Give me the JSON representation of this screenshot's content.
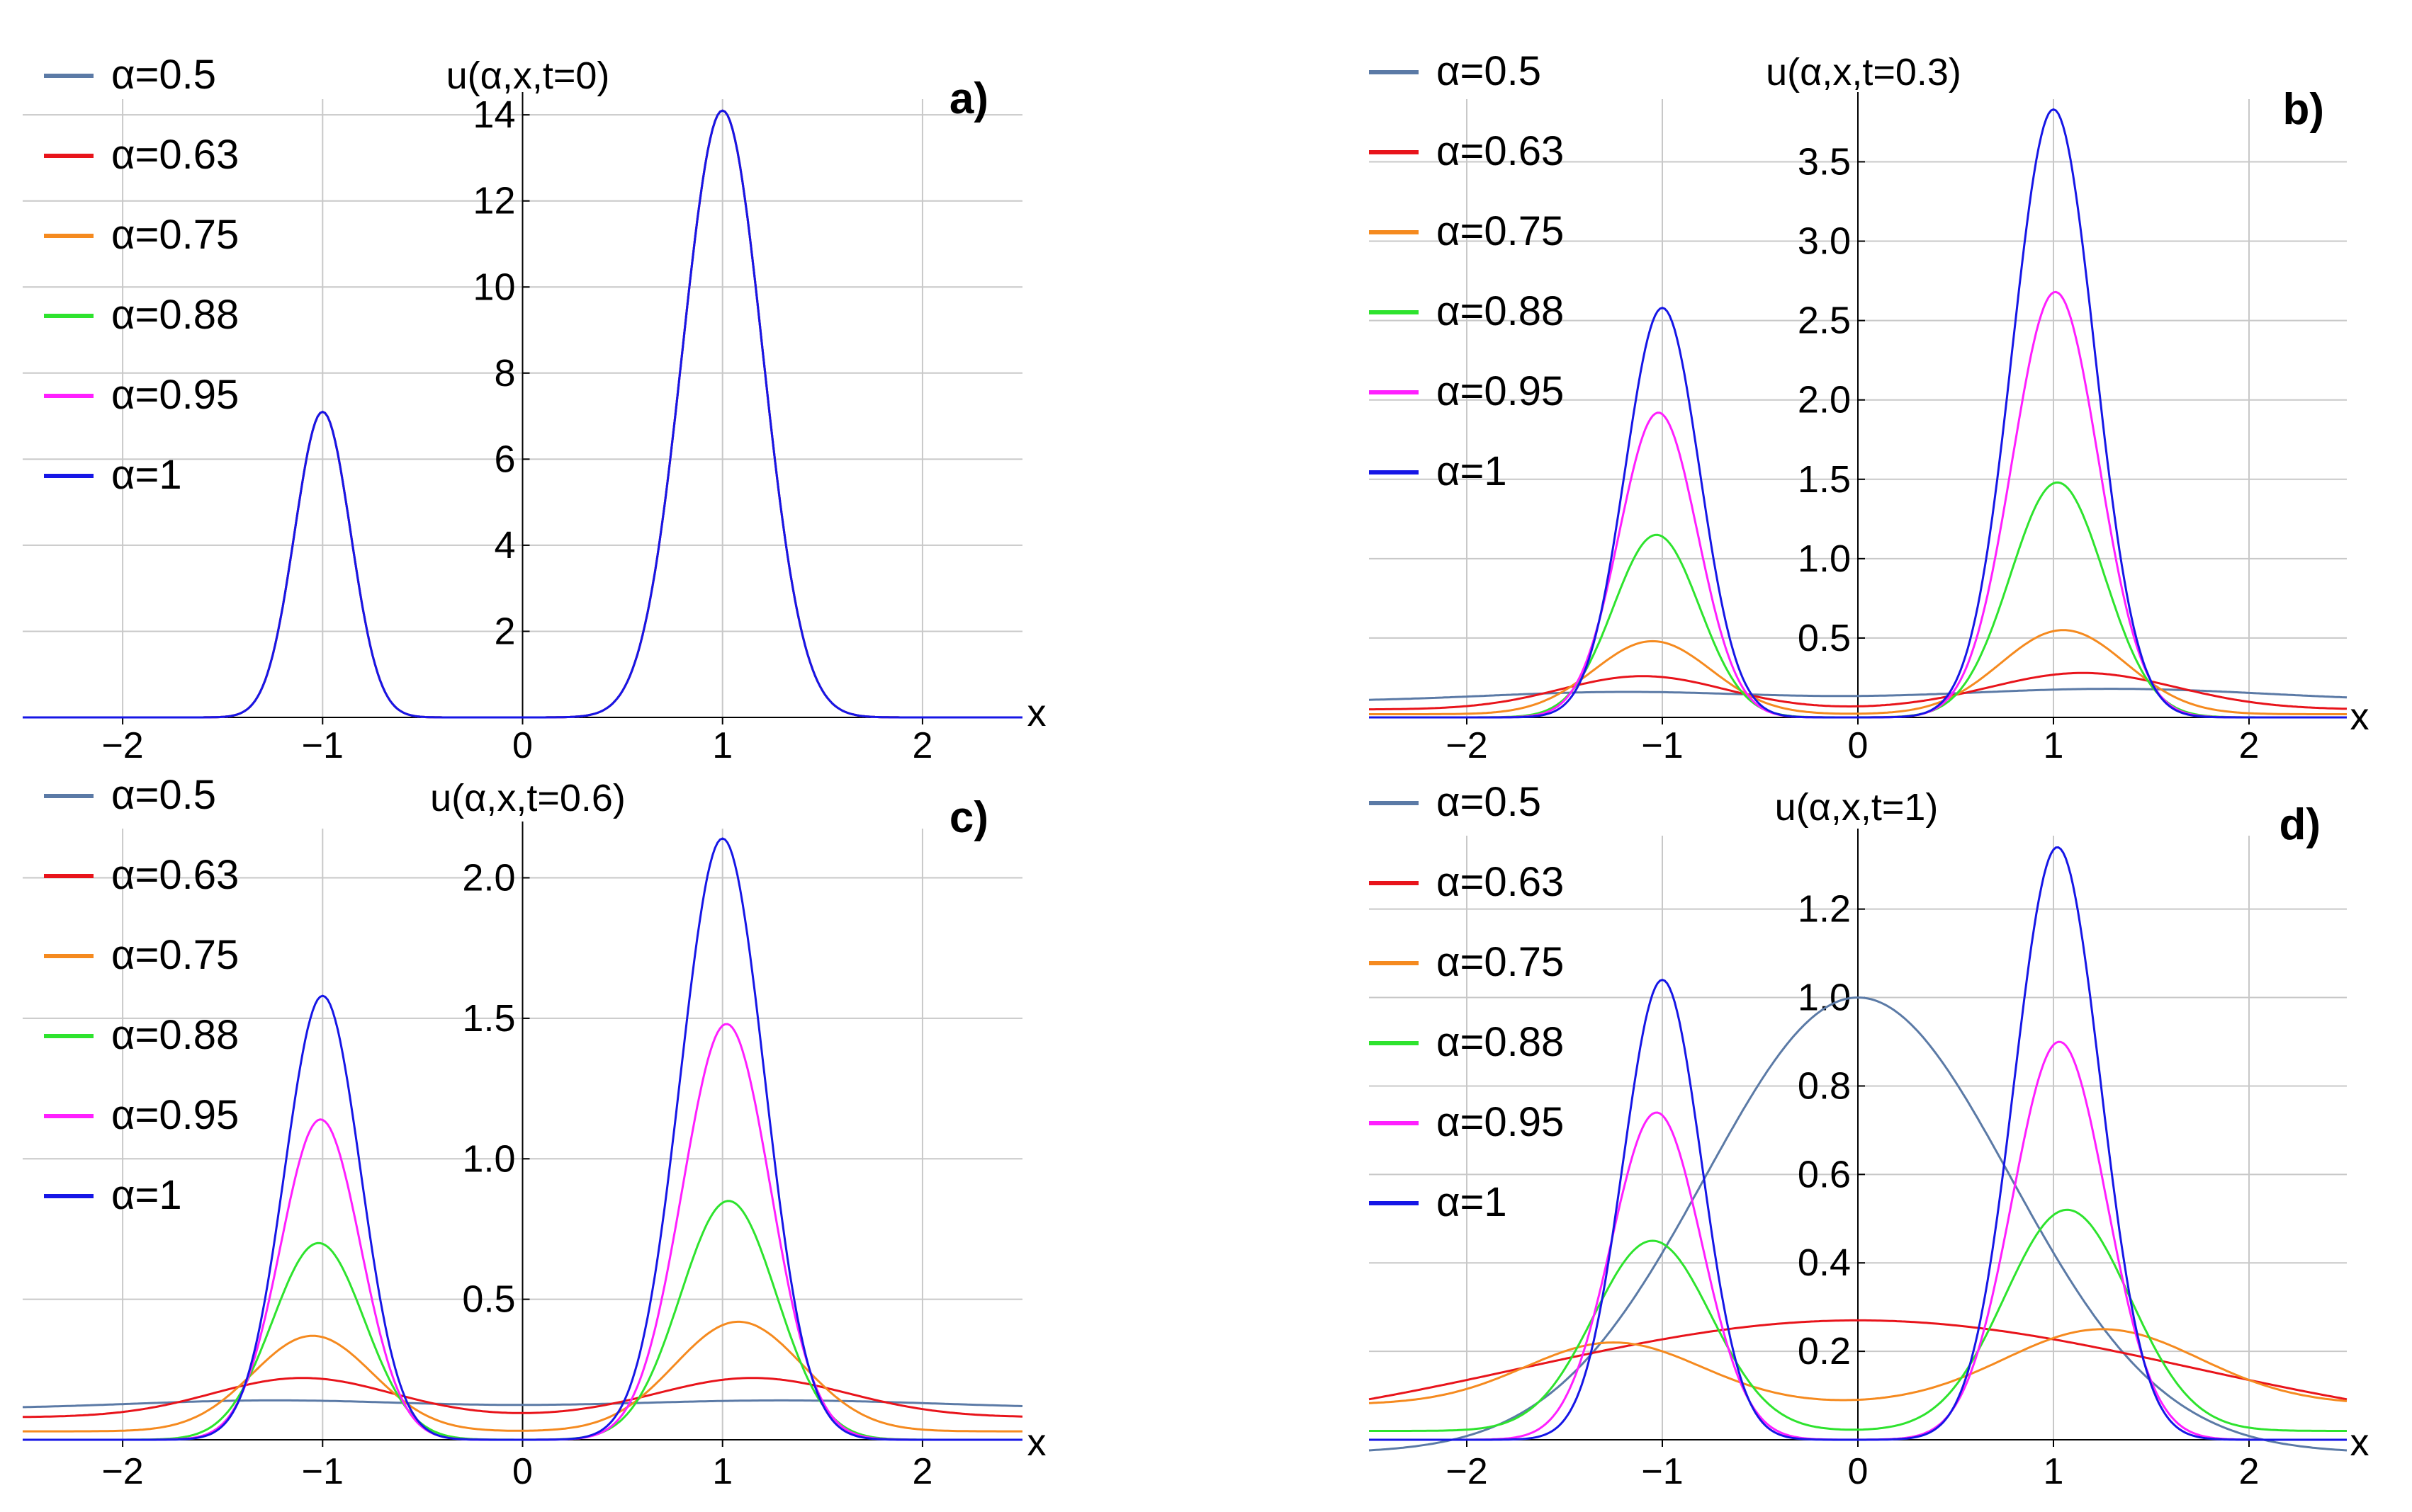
{
  "series_styles": [
    {
      "name": "α=0.5",
      "color": "#5b7aa6"
    },
    {
      "name": "α=0.63",
      "color": "#e8141b"
    },
    {
      "name": "α=0.75",
      "color": "#f58a1f"
    },
    {
      "name": "α=0.88",
      "color": "#2ee32e"
    },
    {
      "name": "α=0.95",
      "color": "#ff1fff"
    },
    {
      "name": "α=1",
      "color": "#1616e6"
    }
  ],
  "chart_data": [
    {
      "type": "line",
      "panel_label": "a)",
      "title": "u(α,x,t=0)",
      "xlabel": "x",
      "xlim": [
        -2.5,
        2.5
      ],
      "ylim": [
        0,
        14.2
      ],
      "grid": true,
      "legend_position": "top-left",
      "x_ticks": [
        -2,
        -1,
        0,
        1,
        2
      ],
      "x_tick_labels": [
        "−2",
        "−1",
        "0",
        "1",
        "2"
      ],
      "y_ticks": [
        2,
        4,
        6,
        8,
        10,
        12,
        14
      ],
      "y_tick_labels": [
        "2",
        "4",
        "6",
        "8",
        "10",
        "12",
        "14"
      ],
      "series": [
        {
          "name": "α=0.5",
          "peaks": [
            {
              "x": -1,
              "y": 7.1,
              "w": 0.14
            },
            {
              "x": 1,
              "y": 14.1,
              "w": 0.2
            }
          ],
          "base": 0
        },
        {
          "name": "α=0.63",
          "peaks": [
            {
              "x": -1,
              "y": 7.1,
              "w": 0.14
            },
            {
              "x": 1,
              "y": 14.1,
              "w": 0.2
            }
          ],
          "base": 0
        },
        {
          "name": "α=0.75",
          "peaks": [
            {
              "x": -1,
              "y": 7.1,
              "w": 0.14
            },
            {
              "x": 1,
              "y": 14.1,
              "w": 0.2
            }
          ],
          "base": 0
        },
        {
          "name": "α=0.88",
          "peaks": [
            {
              "x": -1,
              "y": 7.1,
              "w": 0.14
            },
            {
              "x": 1,
              "y": 14.1,
              "w": 0.2
            }
          ],
          "base": 0
        },
        {
          "name": "α=0.95",
          "peaks": [
            {
              "x": -1,
              "y": 7.1,
              "w": 0.14
            },
            {
              "x": 1,
              "y": 14.1,
              "w": 0.2
            }
          ],
          "base": 0
        },
        {
          "name": "α=1",
          "peaks": [
            {
              "x": -1,
              "y": 7.1,
              "w": 0.14
            },
            {
              "x": 1,
              "y": 14.1,
              "w": 0.2
            }
          ],
          "base": 0
        }
      ]
    },
    {
      "type": "line",
      "panel_label": "b)",
      "title": "u(α,x,t=0.3)",
      "xlabel": "x",
      "xlim": [
        -2.5,
        2.5
      ],
      "ylim": [
        0,
        3.85
      ],
      "grid": true,
      "legend_position": "top-left",
      "x_ticks": [
        -2,
        -1,
        0,
        1,
        2
      ],
      "x_tick_labels": [
        "−2",
        "−1",
        "0",
        "1",
        "2"
      ],
      "y_ticks": [
        0.5,
        1.0,
        1.5,
        2.0,
        2.5,
        3.0,
        3.5
      ],
      "y_tick_labels": [
        "0.5",
        "1.0",
        "1.5",
        "2.0",
        "2.5",
        "3.0",
        "3.5"
      ],
      "series": [
        {
          "name": "α=0.5",
          "peaks": [
            {
              "x": -1.2,
              "y": 0.16,
              "w": 0.7
            },
            {
              "x": 1.3,
              "y": 0.18,
              "w": 0.8
            }
          ],
          "base": 0.1
        },
        {
          "name": "α=0.63",
          "peaks": [
            {
              "x": -1.1,
              "y": 0.26,
              "w": 0.42
            },
            {
              "x": 1.15,
              "y": 0.28,
              "w": 0.48
            }
          ],
          "base": 0.05
        },
        {
          "name": "α=0.75",
          "peaks": [
            {
              "x": -1.05,
              "y": 0.48,
              "w": 0.3
            },
            {
              "x": 1.05,
              "y": 0.55,
              "w": 0.32
            }
          ],
          "base": 0.02
        },
        {
          "name": "α=0.88",
          "peaks": [
            {
              "x": -1.03,
              "y": 1.15,
              "w": 0.22
            },
            {
              "x": 1.02,
              "y": 1.48,
              "w": 0.24
            }
          ],
          "base": 0
        },
        {
          "name": "α=0.95",
          "peaks": [
            {
              "x": -1.02,
              "y": 1.92,
              "w": 0.2
            },
            {
              "x": 1.01,
              "y": 2.68,
              "w": 0.22
            }
          ],
          "base": 0
        },
        {
          "name": "α=1",
          "peaks": [
            {
              "x": -1.0,
              "y": 2.58,
              "w": 0.19
            },
            {
              "x": 1.0,
              "y": 3.83,
              "w": 0.21
            }
          ],
          "base": 0
        }
      ]
    },
    {
      "type": "line",
      "panel_label": "c)",
      "title": "u(α,x,t=0.6)",
      "xlabel": "x",
      "xlim": [
        -2.5,
        2.5
      ],
      "ylim": [
        0,
        2.15
      ],
      "grid": true,
      "legend_position": "top-left",
      "x_ticks": [
        -2,
        -1,
        0,
        1,
        2
      ],
      "x_tick_labels": [
        "−2",
        "−1",
        "0",
        "1",
        "2"
      ],
      "y_ticks": [
        0.5,
        1.0,
        1.5,
        2.0
      ],
      "y_tick_labels": [
        "0.5",
        "1.0",
        "1.5",
        "2.0"
      ],
      "series": [
        {
          "name": "α=0.5",
          "peaks": [
            {
              "x": -1.25,
              "y": 0.14,
              "w": 0.7
            },
            {
              "x": 1.3,
              "y": 0.14,
              "w": 0.8
            }
          ],
          "base": 0.11
        },
        {
          "name": "α=0.63",
          "peaks": [
            {
              "x": -1.1,
              "y": 0.22,
              "w": 0.45
            },
            {
              "x": 1.15,
              "y": 0.22,
              "w": 0.48
            }
          ],
          "base": 0.08
        },
        {
          "name": "α=0.75",
          "peaks": [
            {
              "x": -1.05,
              "y": 0.37,
              "w": 0.3
            },
            {
              "x": 1.08,
              "y": 0.42,
              "w": 0.32
            }
          ],
          "base": 0.03
        },
        {
          "name": "α=0.88",
          "peaks": [
            {
              "x": -1.02,
              "y": 0.7,
              "w": 0.23
            },
            {
              "x": 1.03,
              "y": 0.85,
              "w": 0.24
            }
          ],
          "base": 0
        },
        {
          "name": "α=0.95",
          "peaks": [
            {
              "x": -1.01,
              "y": 1.14,
              "w": 0.2
            },
            {
              "x": 1.02,
              "y": 1.48,
              "w": 0.22
            }
          ],
          "base": 0
        },
        {
          "name": "α=1",
          "peaks": [
            {
              "x": -1.0,
              "y": 1.58,
              "w": 0.19
            },
            {
              "x": 1.0,
              "y": 2.14,
              "w": 0.21
            }
          ],
          "base": 0
        }
      ]
    },
    {
      "type": "line",
      "panel_label": "d)",
      "title": "u(α,x,t=1)",
      "xlabel": "x",
      "xlim": [
        -2.5,
        2.5
      ],
      "ylim": [
        0,
        1.35
      ],
      "grid": true,
      "legend_position": "top-left",
      "x_ticks": [
        -2,
        -1,
        0,
        1,
        2
      ],
      "x_tick_labels": [
        "−2",
        "−1",
        "0",
        "1",
        "2"
      ],
      "y_ticks": [
        0.2,
        0.4,
        0.6,
        0.8,
        1.0,
        1.2
      ],
      "y_tick_labels": [
        "0.2",
        "0.4",
        "0.6",
        "0.8",
        "1.0",
        "1.2"
      ],
      "series": [
        {
          "name": "α=0.5",
          "peaks": [
            {
              "x": 0,
              "y": 1.0,
              "w": 0.78
            }
          ],
          "base": -0.03
        },
        {
          "name": "α=0.63",
          "peaks": [
            {
              "x": 0,
              "y": 0.27,
              "w": 1.7
            }
          ],
          "base": 0
        },
        {
          "name": "α=0.75",
          "peaks": [
            {
              "x": -1.25,
              "y": 0.22,
              "w": 0.45
            },
            {
              "x": 1.25,
              "y": 0.25,
              "w": 0.5
            }
          ],
          "base": 0.08
        },
        {
          "name": "α=0.88",
          "peaks": [
            {
              "x": -1.05,
              "y": 0.45,
              "w": 0.3
            },
            {
              "x": 1.07,
              "y": 0.52,
              "w": 0.32
            }
          ],
          "base": 0.02
        },
        {
          "name": "α=0.95",
          "peaks": [
            {
              "x": -1.03,
              "y": 0.74,
              "w": 0.23
            },
            {
              "x": 1.03,
              "y": 0.9,
              "w": 0.24
            }
          ],
          "base": 0
        },
        {
          "name": "α=1",
          "peaks": [
            {
              "x": -1.0,
              "y": 1.04,
              "w": 0.2
            },
            {
              "x": 1.02,
              "y": 1.34,
              "w": 0.22
            }
          ],
          "base": 0
        }
      ]
    }
  ]
}
